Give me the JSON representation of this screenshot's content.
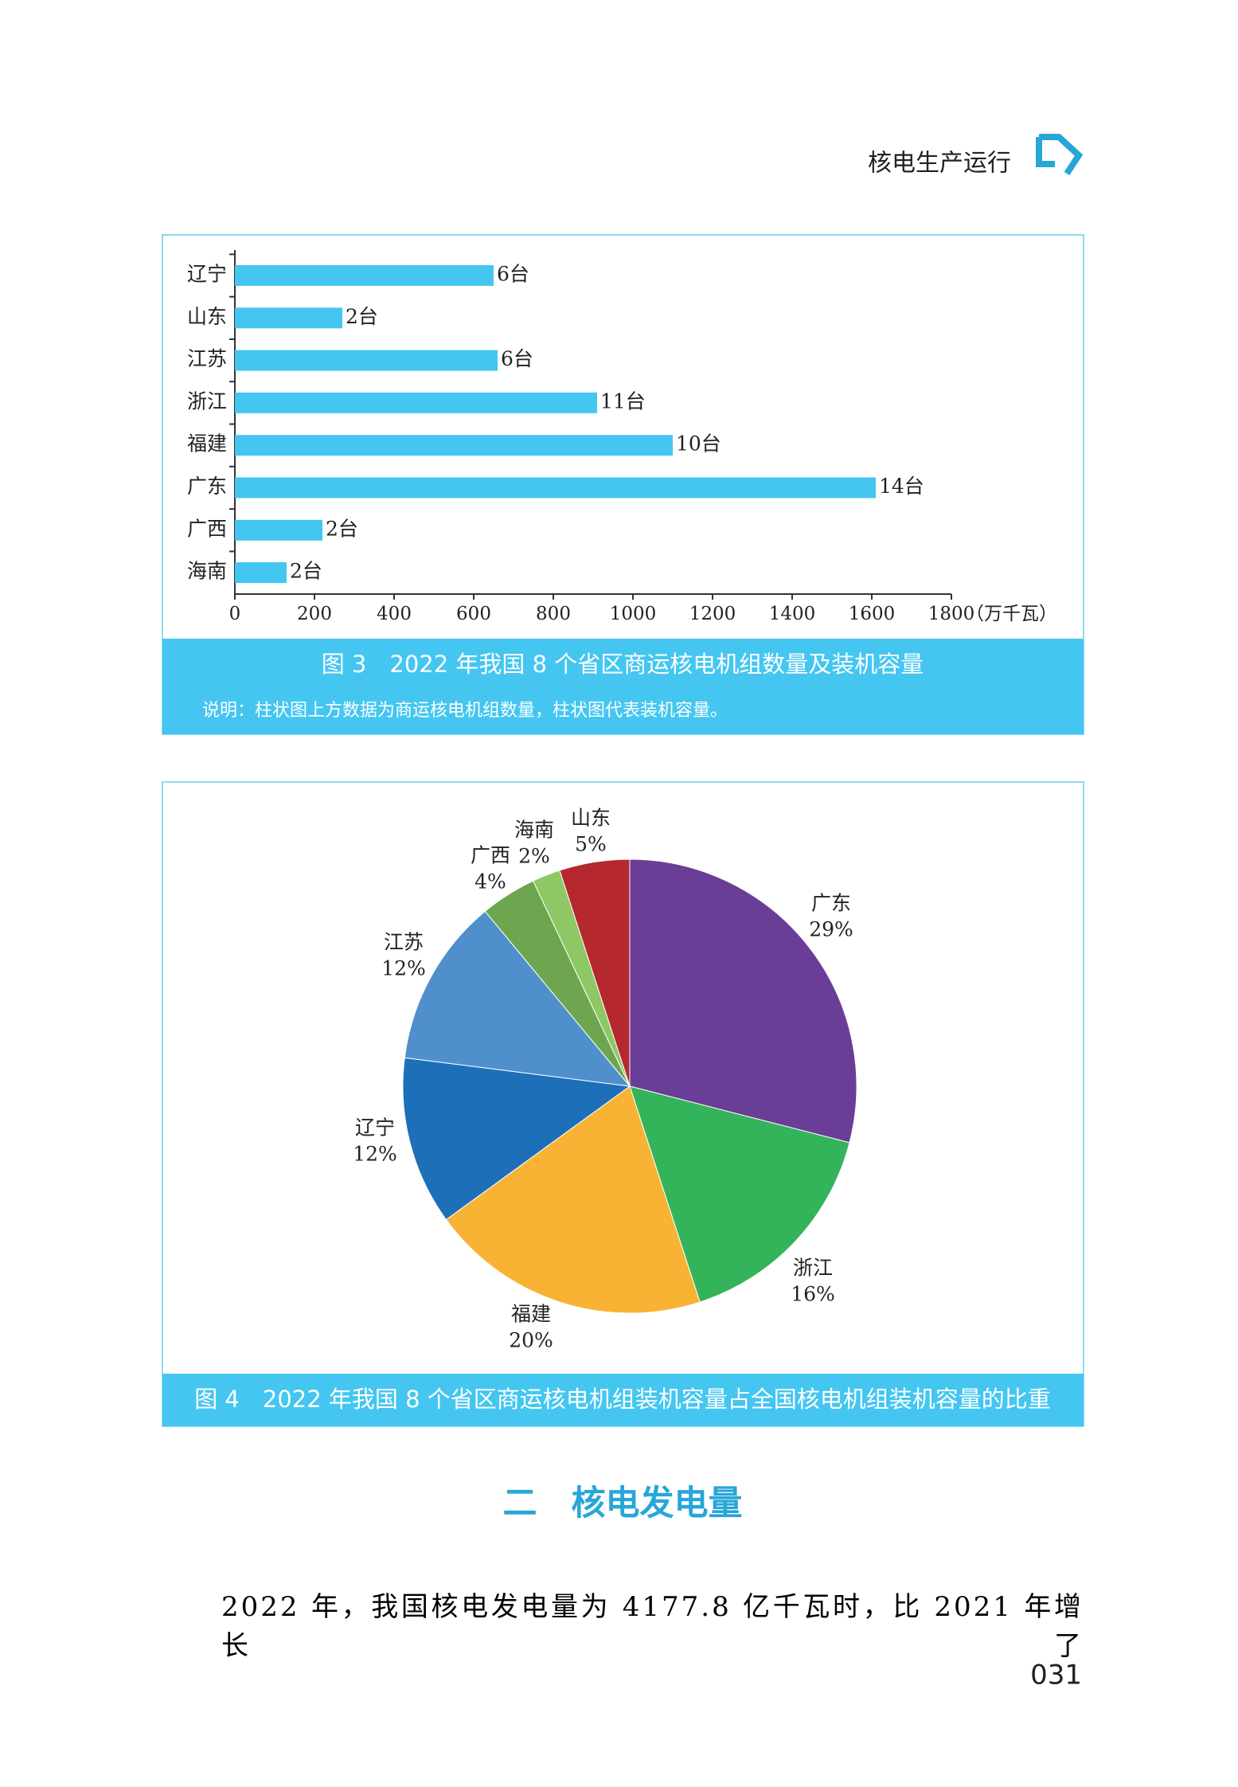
{
  "header": {
    "title": "核电生产运行"
  },
  "chart_data": [
    {
      "type": "bar",
      "orientation": "horizontal",
      "categories": [
        "辽宁",
        "山东",
        "江苏",
        "浙江",
        "福建",
        "广东",
        "广西",
        "海南"
      ],
      "values": [
        650,
        270,
        660,
        910,
        1100,
        1610,
        220,
        130
      ],
      "unit_labels": [
        "6台",
        "2台",
        "6台",
        "11台",
        "10台",
        "14台",
        "2台",
        "2台"
      ],
      "color": "#44c6f1",
      "xlim": [
        0,
        1800
      ],
      "xticks": [
        0,
        200,
        400,
        600,
        800,
        1000,
        1200,
        1400,
        1600,
        1800
      ],
      "xlabel": "（万千瓦）",
      "title": "图 3　2022 年我国 8 个省区商运核电机组数量及装机容量",
      "note": "说明：柱状图上方数据为商运核电机组数量，柱状图代表装机容量。"
    },
    {
      "type": "pie",
      "categories": [
        "广东",
        "浙江",
        "福建",
        "辽宁",
        "江苏",
        "广西",
        "海南",
        "山东"
      ],
      "values": [
        29,
        16,
        20,
        12,
        12,
        4,
        2,
        5
      ],
      "value_labels": [
        "29%",
        "16%",
        "20%",
        "12%",
        "12%",
        "4%",
        "2%",
        "5%"
      ],
      "colors": [
        "#6a3d96",
        "#34b45a",
        "#f8b334",
        "#1d6fb8",
        "#4f8fcc",
        "#6ea64f",
        "#8dc865",
        "#b5282e"
      ],
      "title": "图 4　2022 年我国 8 个省区商运核电机组装机容量占全国核电机组装机容量的比重"
    }
  ],
  "section": {
    "title": "二　核电发电量"
  },
  "body": {
    "text": "2022 年，我国核电发电量为 4177.8 亿千瓦时，比 2021 年增长了"
  },
  "page_number": "031"
}
